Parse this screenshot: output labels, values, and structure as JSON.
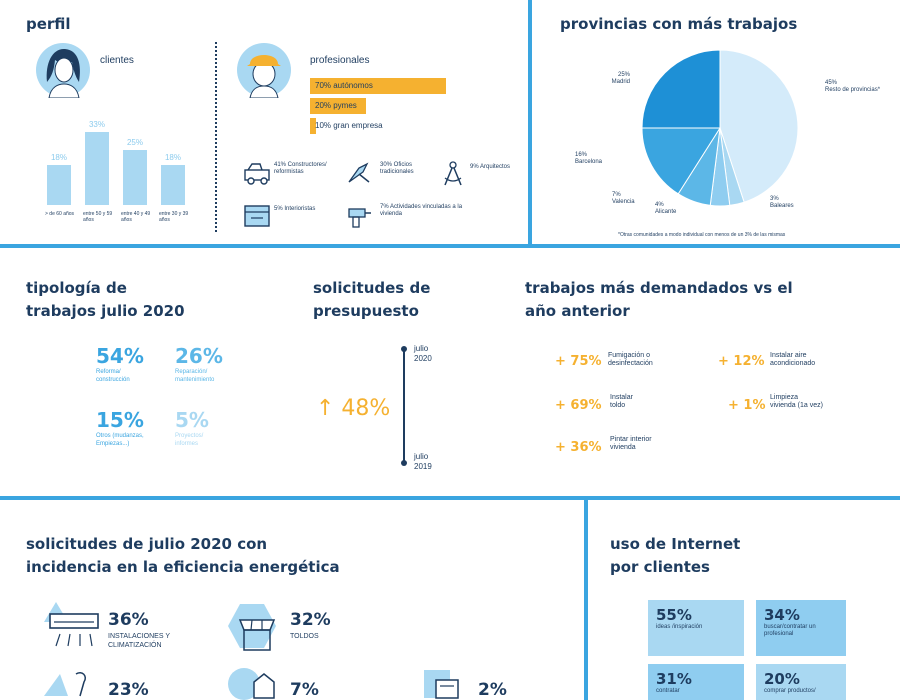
{
  "colors": {
    "accent": "#3aa5e0",
    "light_blue": "#a9d8f2",
    "orange": "#f5b130",
    "navy": "#1e3c5f"
  },
  "perfil": {
    "title": "perfil",
    "clientes": {
      "label": "clientes",
      "bars": [
        {
          "pct": "18%",
          "value": 18,
          "label": "> de 60 años"
        },
        {
          "pct": "33%",
          "value": 33,
          "label": "entre 50 y 59 años"
        },
        {
          "pct": "25%",
          "value": 25,
          "label": "entre 40 y 49 años"
        },
        {
          "pct": "18%",
          "value": 18,
          "label": "entre 30 y 39 años"
        }
      ]
    },
    "profesionales": {
      "label": "profesionales",
      "bars": [
        {
          "text": "70% autónomos",
          "value": 70
        },
        {
          "text": "20% pymes",
          "value": 20
        },
        {
          "text": "10% gran empresa",
          "value": 10
        }
      ],
      "types": [
        {
          "text": "41% Constructores/ reformistas",
          "icon": "truck-icon"
        },
        {
          "text": "30% Oficios tradicionales",
          "icon": "trowel-icon"
        },
        {
          "text": "9% Arquitectos",
          "icon": "compass-icon"
        },
        {
          "text": "5% Interioristas",
          "icon": "window-icon"
        },
        {
          "text": "7% Actividades vinculadas a la vivienda",
          "icon": "drill-icon"
        }
      ]
    }
  },
  "provincias": {
    "title": "provincias con más trabajos",
    "footnote": "*Otras comunidades a modo individual con menos de un 3% de las mismas",
    "slices": [
      {
        "name": "Resto de provincias*",
        "pct": "45%",
        "value": 45,
        "color": "#d4ebfa"
      },
      {
        "name": "Baleares",
        "pct": "3%",
        "value": 3,
        "color": "#a9d8f2"
      },
      {
        "name": "Alicante",
        "pct": "4%",
        "value": 4,
        "color": "#8fcdf0"
      },
      {
        "name": "Valencia",
        "pct": "7%",
        "value": 7,
        "color": "#5cb7e7"
      },
      {
        "name": "Barcelona",
        "pct": "16%",
        "value": 16,
        "color": "#3aa5e0"
      },
      {
        "name": "Madrid",
        "pct": "25%",
        "value": 25,
        "color": "#1e90d6"
      }
    ]
  },
  "tipologia": {
    "title_1": "tipología de",
    "title_2": "trabajos julio 2020",
    "items": [
      {
        "pct": "54%",
        "label": "Reforma/ construcción"
      },
      {
        "pct": "26%",
        "label": "Reparación/ mantenimiento"
      },
      {
        "pct": "15%",
        "label": "Otros (mudanzas, Empiezas...)"
      },
      {
        "pct": "5%",
        "label": "Proyectos/ informes"
      }
    ]
  },
  "solicitudes": {
    "title_1": "solicitudes de",
    "title_2": "presupuesto",
    "top_label_1": "julio",
    "top_label_2": "2020",
    "bottom_label_1": "julio",
    "bottom_label_2": "2019",
    "change": "↑ 48%"
  },
  "trabajos": {
    "title_1": "trabajos más demandados vs el",
    "title_2": "año anterior",
    "items": [
      {
        "value": "+ 75%",
        "label_1": "Fumigación o",
        "label_2": "desinfectación"
      },
      {
        "value": "+ 12%",
        "label_1": "Instalar aire",
        "label_2": "acondicionado"
      },
      {
        "value": "+ 69%",
        "label_1": "Instalar",
        "label_2": "toldo"
      },
      {
        "value": "+ 1%",
        "label_1": "Limpieza",
        "label_2": "vivienda (1a vez)"
      },
      {
        "value": "+ 36%",
        "label_1": "Pintar interior",
        "label_2": "vivienda"
      }
    ]
  },
  "eficiencia": {
    "title_1": "solicitudes de julio 2020 con",
    "title_2": "incidencia en la eficiencia energética",
    "items": [
      {
        "pct": "36%",
        "label_1": "INSTALACIONES Y",
        "label_2": "CLIMATIZACIÓN",
        "icon": "air-conditioner-icon"
      },
      {
        "pct": "32%",
        "label_1": "TOLDOS",
        "label_2": "",
        "icon": "awning-icon"
      },
      {
        "pct": "23%",
        "label_1": "",
        "label_2": "",
        "icon": "stairs-icon"
      },
      {
        "pct": "7%",
        "label_1": "",
        "label_2": "",
        "icon": "house-icon"
      },
      {
        "pct": "2%",
        "label_1": "",
        "label_2": "",
        "icon": "window-icon"
      }
    ]
  },
  "internet": {
    "title_1": "uso de Internet",
    "title_2": "por clientes",
    "tiles": [
      {
        "pct": "55%",
        "label": "ideas /inspiración"
      },
      {
        "pct": "34%",
        "label": "buscar/contratar un profesional"
      },
      {
        "pct": "31%",
        "label": "contratar"
      },
      {
        "pct": "20%",
        "label": "comprar productos/"
      }
    ]
  }
}
